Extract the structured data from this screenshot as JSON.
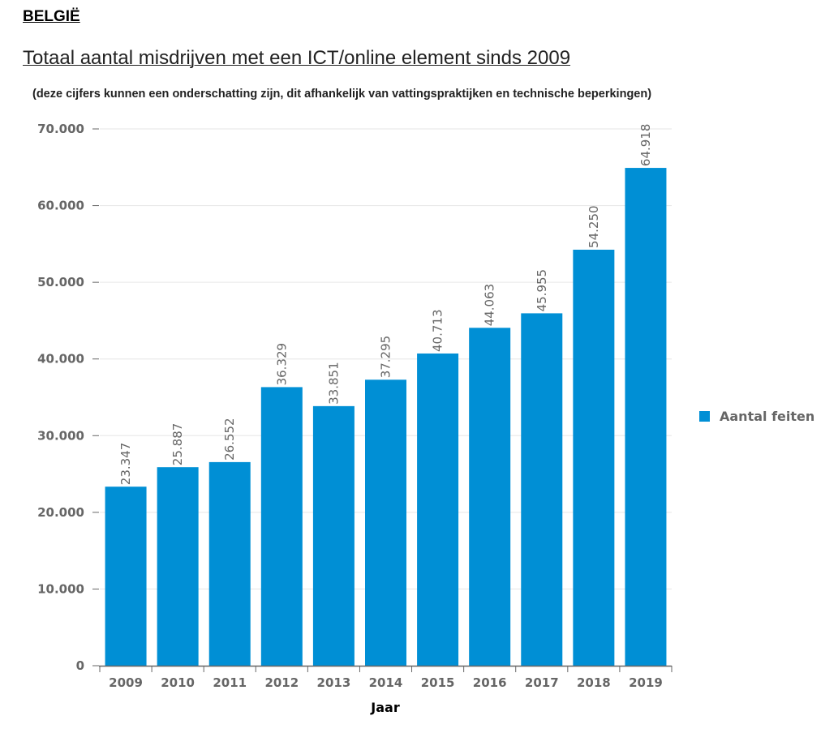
{
  "header": {
    "country": "BELGIË",
    "title": "Totaal aantal misdrijven met een ICT/online element sinds 2009",
    "subtitle": "(deze cijfers kunnen een onderschatting zijn, dit afhankelijk van vattingspraktijken en technische beperkingen)"
  },
  "colors": {
    "bar": "#008fd5",
    "grid": "#e6e6e6",
    "axis": "#666666"
  },
  "chart_data": {
    "type": "bar",
    "title": "Totaal aantal misdrijven met een ICT/online element sinds 2009",
    "subtitle": "(deze cijfers kunnen een onderschatting zijn, dit afhankelijk van vattingspraktijken en technische beperkingen)",
    "xlabel": "Jaar",
    "ylabel": "",
    "categories": [
      "2009",
      "2010",
      "2011",
      "2012",
      "2013",
      "2014",
      "2015",
      "2016",
      "2017",
      "2018",
      "2019"
    ],
    "series": [
      {
        "name": "Aantal feiten",
        "values": [
          23347,
          25887,
          26552,
          36329,
          33851,
          37295,
          40713,
          44063,
          45955,
          54250,
          64918
        ],
        "labels": [
          "23.347",
          "25.887",
          "26.552",
          "36.329",
          "33.851",
          "37.295",
          "40.713",
          "44.063",
          "45.955",
          "54.250",
          "64.918"
        ]
      }
    ],
    "ylim": [
      0,
      70000
    ],
    "yticks": [
      0,
      10000,
      20000,
      30000,
      40000,
      50000,
      60000,
      70000
    ],
    "ytick_labels": [
      "0",
      "10.000",
      "20.000",
      "30.000",
      "40.000",
      "50.000",
      "60.000",
      "70.000"
    ],
    "grid": true,
    "legend_position": "right"
  }
}
